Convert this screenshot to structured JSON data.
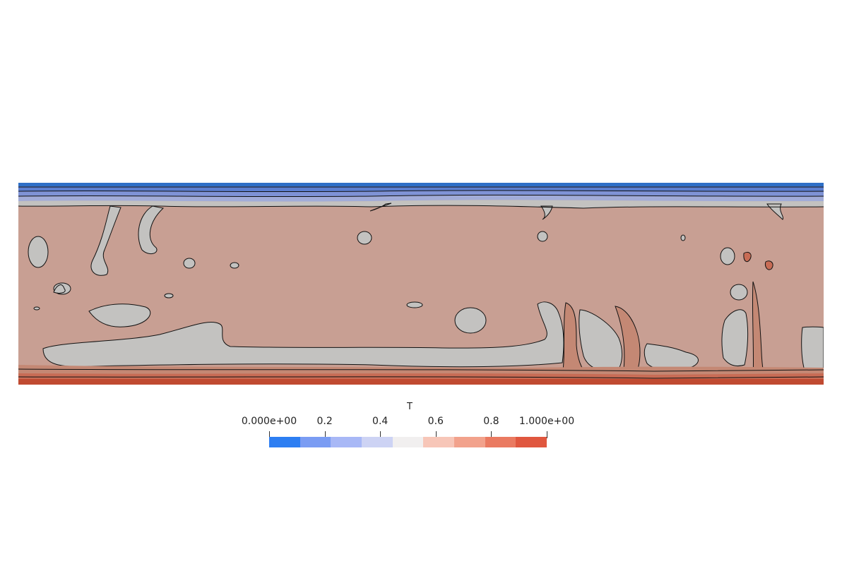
{
  "colorbar": {
    "title": "T",
    "ticks": [
      {
        "label": "0.000e+00",
        "value": 0.0
      },
      {
        "label": "0.2",
        "value": 0.2
      },
      {
        "label": "0.4",
        "value": 0.4
      },
      {
        "label": "0.6",
        "value": 0.6
      },
      {
        "label": "0.8",
        "value": 0.8
      },
      {
        "label": "1.000e+00",
        "value": 1.0
      }
    ],
    "range": [
      0,
      1
    ],
    "band_colors": [
      "#2d7ef2",
      "#7a9cf3",
      "#a8b8f6",
      "#cdd3f4",
      "#f1efef",
      "#f7c6b8",
      "#f2a28c",
      "#ea7a61",
      "#e0573f"
    ]
  },
  "field": {
    "colors": {
      "top_dark": "#2e6fc7",
      "top_band_1": "#5c7fd0",
      "top_band_2": "#7f93d6",
      "top_band_3": "#a2acd8",
      "mid_gray": "#c3c2c0",
      "core": "#c89f93",
      "bottom_band_1": "#c48874",
      "bottom_band_2": "#c86c55",
      "bottom_dark": "#c04a31",
      "contour": "#111111"
    }
  }
}
